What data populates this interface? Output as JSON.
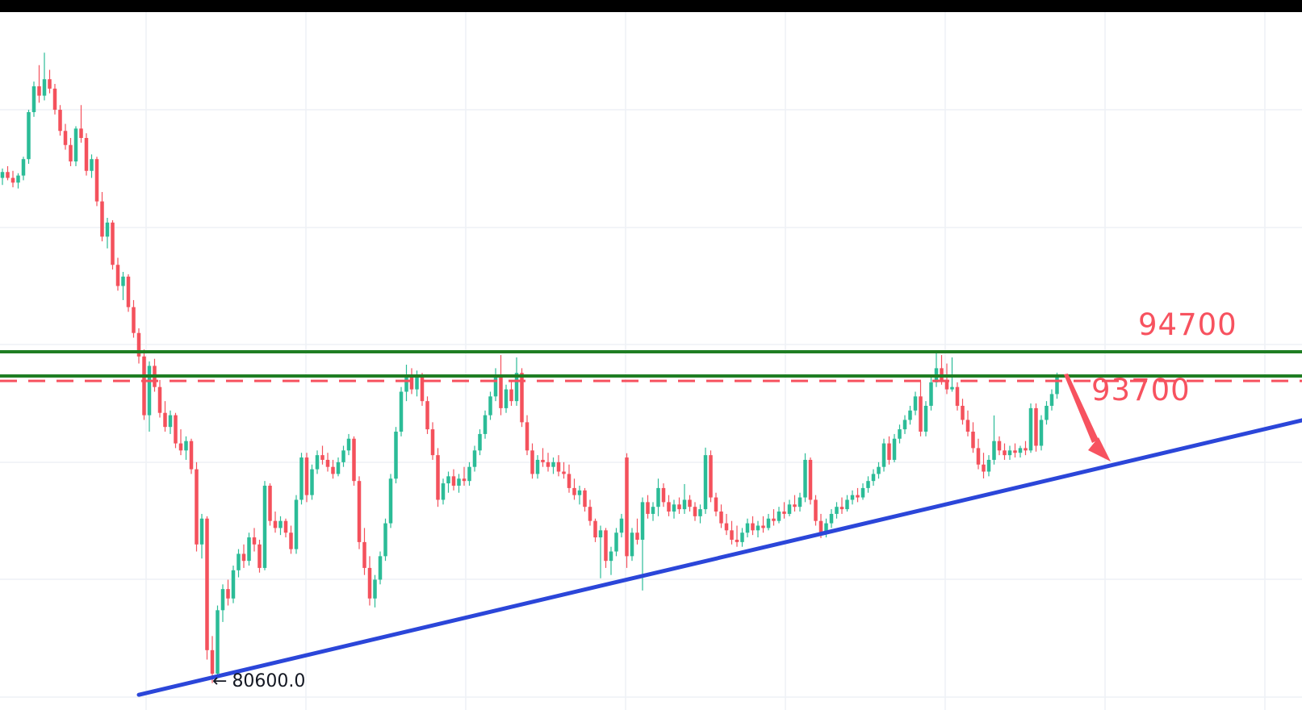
{
  "app": {
    "top_bar_color": "#000000"
  },
  "chart_data": {
    "type": "candlestick",
    "grid": true,
    "x_count": 202,
    "ylim": [
      79450,
      109160
    ],
    "colors": {
      "up": "#2bbc97",
      "down": "#f4515c",
      "grid": "#eef1f6",
      "level_green": "#1f7e23",
      "dashed_red": "#f7525f",
      "trend_blue": "#2b46d9",
      "annotation_pink": "#f7525f",
      "low_label_black": "#131722"
    },
    "levels": [
      {
        "label": "94700",
        "price": 94700,
        "style": "solid",
        "color": "#1f7e23"
      },
      {
        "label": "",
        "price": 93670,
        "style": "solid",
        "color": "#1f7e23"
      },
      {
        "label": "93700",
        "price": 93460,
        "style": "dashed",
        "color": "#f7525f"
      }
    ],
    "trendline": {
      "index_start": 26,
      "price_start": 80100,
      "index_end": 248,
      "price_end": 91800,
      "color": "#2b46d9"
    },
    "arrow_annotation": {
      "from_price": 93630,
      "to_price": 90100,
      "color": "#f7525f"
    },
    "low_marker": {
      "arrow": "←",
      "text": "80600.0",
      "price": 80600,
      "index": 40
    },
    "candles": [
      [
        102100,
        102500,
        101800,
        102350
      ],
      [
        102350,
        102600,
        102000,
        102100
      ],
      [
        102100,
        102400,
        101700,
        101900
      ],
      [
        101900,
        102300,
        101650,
        102200
      ],
      [
        102200,
        103000,
        102000,
        102900
      ],
      [
        102900,
        105000,
        102700,
        104900
      ],
      [
        104900,
        106200,
        104700,
        106000
      ],
      [
        106000,
        106900,
        105300,
        105600
      ],
      [
        105600,
        107430,
        105400,
        106300
      ],
      [
        106300,
        106700,
        105700,
        105900
      ],
      [
        105900,
        106100,
        104800,
        105000
      ],
      [
        105000,
        105200,
        103900,
        104100
      ],
      [
        104100,
        104400,
        103300,
        103500
      ],
      [
        103500,
        103800,
        102600,
        102800
      ],
      [
        102800,
        104300,
        102600,
        104200
      ],
      [
        104200,
        105200,
        103600,
        103800
      ],
      [
        103800,
        104000,
        102200,
        102400
      ],
      [
        102400,
        103100,
        102100,
        102900
      ],
      [
        102900,
        103000,
        100900,
        101100
      ],
      [
        101100,
        101500,
        99400,
        99600
      ],
      [
        99600,
        100400,
        99100,
        100200
      ],
      [
        100200,
        100300,
        98200,
        98400
      ],
      [
        98400,
        98700,
        97300,
        97500
      ],
      [
        97500,
        98100,
        96900,
        97900
      ],
      [
        97900,
        98000,
        96400,
        96600
      ],
      [
        96600,
        96900,
        95300,
        95500
      ],
      [
        95500,
        95700,
        94200,
        94500
      ],
      [
        94500,
        94800,
        91800,
        92000
      ],
      [
        92000,
        94290,
        91300,
        94100
      ],
      [
        94100,
        94400,
        93000,
        93200
      ],
      [
        93200,
        93500,
        91900,
        92100
      ],
      [
        92100,
        92600,
        91300,
        91500
      ],
      [
        91500,
        92200,
        91200,
        92000
      ],
      [
        92000,
        92100,
        90600,
        90800
      ],
      [
        90800,
        91400,
        90300,
        90500
      ],
      [
        90500,
        91100,
        90100,
        90900
      ],
      [
        90900,
        91000,
        89500,
        89700
      ],
      [
        89700,
        90000,
        86200,
        86500
      ],
      [
        86500,
        87800,
        85900,
        87600
      ],
      [
        87600,
        87700,
        81600,
        82000
      ],
      [
        82000,
        82600,
        80600,
        81000
      ],
      [
        81000,
        83900,
        80800,
        83700
      ],
      [
        83700,
        84800,
        83200,
        84600
      ],
      [
        84600,
        85000,
        83900,
        84200
      ],
      [
        84200,
        85600,
        84000,
        85400
      ],
      [
        85400,
        86300,
        85100,
        86100
      ],
      [
        86100,
        86500,
        85500,
        85800
      ],
      [
        85800,
        87000,
        85600,
        86800
      ],
      [
        86800,
        87200,
        86200,
        86500
      ],
      [
        86500,
        86700,
        85300,
        85500
      ],
      [
        85500,
        89200,
        85400,
        89000
      ],
      [
        89000,
        89100,
        87300,
        87500
      ],
      [
        87500,
        87900,
        87000,
        87200
      ],
      [
        87200,
        87700,
        86900,
        87500
      ],
      [
        87500,
        87600,
        86800,
        87000
      ],
      [
        87000,
        87300,
        86100,
        86300
      ],
      [
        86300,
        88600,
        86100,
        88400
      ],
      [
        88400,
        90400,
        88200,
        90200
      ],
      [
        90200,
        90400,
        88300,
        88600
      ],
      [
        88600,
        89900,
        88400,
        89700
      ],
      [
        89700,
        90500,
        89500,
        90300
      ],
      [
        90300,
        90700,
        89900,
        90100
      ],
      [
        90100,
        90400,
        89600,
        89800
      ],
      [
        89800,
        90100,
        89300,
        89500
      ],
      [
        89500,
        90200,
        89400,
        90000
      ],
      [
        90000,
        90700,
        89800,
        90500
      ],
      [
        90500,
        91200,
        90300,
        91000
      ],
      [
        91000,
        91100,
        89000,
        89200
      ],
      [
        89200,
        89400,
        86300,
        86600
      ],
      [
        86600,
        87200,
        85200,
        85500
      ],
      [
        85500,
        86000,
        83900,
        84200
      ],
      [
        84200,
        85200,
        83820,
        85000
      ],
      [
        85000,
        86200,
        84800,
        86000
      ],
      [
        86000,
        87600,
        85800,
        87400
      ],
      [
        87400,
        89500,
        87200,
        89300
      ],
      [
        89300,
        91500,
        89100,
        91300
      ],
      [
        91300,
        93200,
        91100,
        93000
      ],
      [
        93000,
        94150,
        92600,
        93600
      ],
      [
        93600,
        94000,
        92900,
        93100
      ],
      [
        93100,
        93900,
        92800,
        93700
      ],
      [
        93700,
        93800,
        92400,
        92600
      ],
      [
        92600,
        92800,
        91200,
        91400
      ],
      [
        91400,
        91700,
        90100,
        90300
      ],
      [
        90300,
        90600,
        88100,
        88400
      ],
      [
        88400,
        89300,
        88200,
        89100
      ],
      [
        89100,
        89600,
        88700,
        89400
      ],
      [
        89400,
        89700,
        88800,
        89000
      ],
      [
        89000,
        89500,
        88700,
        89300
      ],
      [
        89300,
        89800,
        89000,
        89200
      ],
      [
        89200,
        90000,
        89000,
        89800
      ],
      [
        89800,
        90700,
        89600,
        90500
      ],
      [
        90500,
        91400,
        90300,
        91200
      ],
      [
        91200,
        92200,
        91000,
        92000
      ],
      [
        92000,
        93000,
        91800,
        92800
      ],
      [
        92800,
        94000,
        92600,
        93600
      ],
      [
        93600,
        94560,
        92000,
        92300
      ],
      [
        92300,
        93300,
        92100,
        93100
      ],
      [
        93100,
        93500,
        92400,
        92600
      ],
      [
        92600,
        94460,
        92400,
        93800
      ],
      [
        93800,
        94000,
        91500,
        91700
      ],
      [
        91700,
        92000,
        90300,
        90500
      ],
      [
        90500,
        90800,
        89300,
        89500
      ],
      [
        89500,
        90300,
        89300,
        90100
      ],
      [
        90100,
        90600,
        89800,
        90000
      ],
      [
        90000,
        90400,
        89600,
        89800
      ],
      [
        89800,
        90200,
        89500,
        90000
      ],
      [
        90000,
        90300,
        89400,
        89600
      ],
      [
        89600,
        90000,
        89300,
        89500
      ],
      [
        89500,
        89900,
        88700,
        88900
      ],
      [
        88900,
        89300,
        88400,
        88600
      ],
      [
        88600,
        89000,
        88200,
        88800
      ],
      [
        88800,
        88900,
        87900,
        88100
      ],
      [
        88100,
        88400,
        87300,
        87500
      ],
      [
        87500,
        87600,
        86600,
        86800
      ],
      [
        86800,
        87300,
        85060,
        87100
      ],
      [
        87100,
        87200,
        85500,
        85800
      ],
      [
        85800,
        86400,
        85200,
        86200
      ],
      [
        86200,
        87200,
        86000,
        87000
      ],
      [
        87000,
        87800,
        86800,
        87600
      ],
      [
        90200,
        90380,
        85500,
        86000
      ],
      [
        86000,
        87200,
        85800,
        87000
      ],
      [
        87000,
        87600,
        86500,
        86700
      ],
      [
        86700,
        88500,
        84540,
        88300
      ],
      [
        88300,
        88600,
        87600,
        87800
      ],
      [
        87800,
        88300,
        87500,
        88100
      ],
      [
        88100,
        89300,
        87700,
        88900
      ],
      [
        88900,
        89100,
        88100,
        88300
      ],
      [
        88300,
        88600,
        87700,
        87900
      ],
      [
        87900,
        88400,
        87600,
        88200
      ],
      [
        88200,
        88500,
        87800,
        88000
      ],
      [
        88000,
        89070,
        87800,
        88400
      ],
      [
        88400,
        88600,
        87900,
        88100
      ],
      [
        88100,
        88300,
        87500,
        87700
      ],
      [
        87700,
        88200,
        87400,
        88000
      ],
      [
        88000,
        90620,
        87800,
        90300
      ],
      [
        90300,
        90500,
        88300,
        88500
      ],
      [
        88500,
        88700,
        87700,
        87900
      ],
      [
        87900,
        88200,
        87200,
        87400
      ],
      [
        87400,
        87800,
        86900,
        87100
      ],
      [
        87100,
        87500,
        86500,
        86700
      ],
      [
        86700,
        87300,
        86400,
        86600
      ],
      [
        86600,
        87200,
        86400,
        87000
      ],
      [
        87000,
        87600,
        86800,
        87400
      ],
      [
        87400,
        87700,
        86900,
        87100
      ],
      [
        87100,
        87500,
        86800,
        87300
      ],
      [
        87300,
        87700,
        87000,
        87200
      ],
      [
        87200,
        87800,
        87100,
        87600
      ],
      [
        87600,
        88000,
        87300,
        87500
      ],
      [
        87500,
        88100,
        87400,
        87900
      ],
      [
        87900,
        88300,
        87600,
        87800
      ],
      [
        87800,
        88400,
        87700,
        88200
      ],
      [
        88200,
        88600,
        87900,
        88100
      ],
      [
        88100,
        88700,
        87900,
        88500
      ],
      [
        88500,
        90380,
        88300,
        90100
      ],
      [
        90100,
        90200,
        88200,
        88400
      ],
      [
        88400,
        88600,
        87300,
        87500
      ],
      [
        87500,
        87800,
        86770,
        87000
      ],
      [
        87000,
        87600,
        86800,
        87400
      ],
      [
        87400,
        88000,
        87200,
        87800
      ],
      [
        87800,
        88300,
        87600,
        88100
      ],
      [
        88100,
        88500,
        87800,
        88000
      ],
      [
        88000,
        88600,
        87900,
        88400
      ],
      [
        88400,
        88800,
        88200,
        88600
      ],
      [
        88600,
        88900,
        88300,
        88500
      ],
      [
        88500,
        89100,
        88400,
        88900
      ],
      [
        88900,
        89400,
        88700,
        89200
      ],
      [
        89200,
        89700,
        89000,
        89500
      ],
      [
        89500,
        90000,
        89300,
        89800
      ],
      [
        89800,
        91000,
        89600,
        90800
      ],
      [
        90800,
        91100,
        89900,
        90100
      ],
      [
        90100,
        91200,
        90000,
        91000
      ],
      [
        91000,
        91600,
        90800,
        91400
      ],
      [
        91400,
        92000,
        91200,
        91800
      ],
      [
        91800,
        92400,
        91600,
        92200
      ],
      [
        92200,
        93000,
        92000,
        92800
      ],
      [
        92800,
        93430,
        91100,
        91300
      ],
      [
        91300,
        92600,
        91100,
        92400
      ],
      [
        92400,
        93600,
        92200,
        93400
      ],
      [
        93400,
        94730,
        93200,
        94000
      ],
      [
        94000,
        94560,
        93300,
        93500
      ],
      [
        93500,
        94200,
        92900,
        93100
      ],
      [
        93100,
        94460,
        93000,
        93200
      ],
      [
        93200,
        93400,
        92200,
        92400
      ],
      [
        92400,
        92700,
        91600,
        91800
      ],
      [
        91800,
        92200,
        91100,
        91300
      ],
      [
        91300,
        91700,
        90400,
        90600
      ],
      [
        90600,
        91000,
        89700,
        89900
      ],
      [
        89900,
        90400,
        89310,
        89600
      ],
      [
        89600,
        90300,
        89400,
        90100
      ],
      [
        90100,
        91990,
        89900,
        90900
      ],
      [
        90900,
        91100,
        90300,
        90500
      ],
      [
        90500,
        90800,
        90100,
        90300
      ],
      [
        90300,
        90700,
        90100,
        90500
      ],
      [
        90500,
        90800,
        90200,
        90400
      ],
      [
        90400,
        90700,
        90200,
        90600
      ],
      [
        90600,
        90900,
        90300,
        90500
      ],
      [
        90500,
        92500,
        90400,
        92300
      ],
      [
        92300,
        92500,
        90450,
        90700
      ],
      [
        90700,
        92000,
        90500,
        91800
      ],
      [
        91800,
        92600,
        91600,
        92400
      ],
      [
        92400,
        93100,
        92200,
        92900
      ],
      [
        92900,
        93810,
        92700,
        93600
      ]
    ]
  }
}
